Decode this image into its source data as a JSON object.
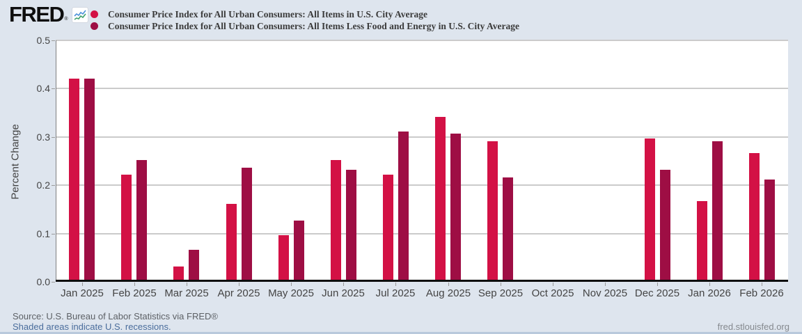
{
  "header": {
    "logo_text": "FRED",
    "registered_mark": "®",
    "legend": [
      {
        "label": "Consumer Price Index for All Urban Consumers: All Items in U.S. City Average",
        "color": "#d31145"
      },
      {
        "label": "Consumer Price Index for All Urban Consumers: All Items Less Food and Energy in U.S. City Average",
        "color": "#9e0e44"
      }
    ]
  },
  "chart_data": {
    "type": "bar",
    "title": "",
    "xlabel": "",
    "ylabel": "Percent Change",
    "ylim": [
      0.0,
      0.5
    ],
    "ytick_step": 0.1,
    "grid": true,
    "legend_position": "top-left",
    "plot_background": "#ffffff",
    "page_background": "#dee5ee",
    "categories": [
      "Jan 2025",
      "Feb 2025",
      "Mar 2025",
      "Apr 2025",
      "May 2025",
      "Jun 2025",
      "Jul 2025",
      "Aug 2025",
      "Sep 2025",
      "Oct 2025",
      "Nov 2025",
      "Dec 2025",
      "Jan 2026",
      "Feb 2026"
    ],
    "series": [
      {
        "name": "Consumer Price Index for All Urban Consumers: All Items in U.S. City Average",
        "color": "#d31145",
        "values": [
          0.42,
          0.22,
          0.03,
          0.16,
          0.095,
          0.25,
          0.22,
          0.34,
          0.29,
          null,
          null,
          0.295,
          0.165,
          0.265
        ]
      },
      {
        "name": "Consumer Price Index for All Urban Consumers: All Items Less Food and Energy in U.S. City Average",
        "color": "#9e0e44",
        "values": [
          0.42,
          0.25,
          0.065,
          0.235,
          0.125,
          0.23,
          0.31,
          0.305,
          0.215,
          null,
          null,
          0.23,
          0.29,
          0.21
        ]
      }
    ]
  },
  "footer": {
    "source_text": "Source: U.S. Bureau of Labor Statistics via FRED®",
    "recessions_link": "Shaded areas indicate U.S. recessions.",
    "site_link": "fred.stlouisfed.org"
  }
}
